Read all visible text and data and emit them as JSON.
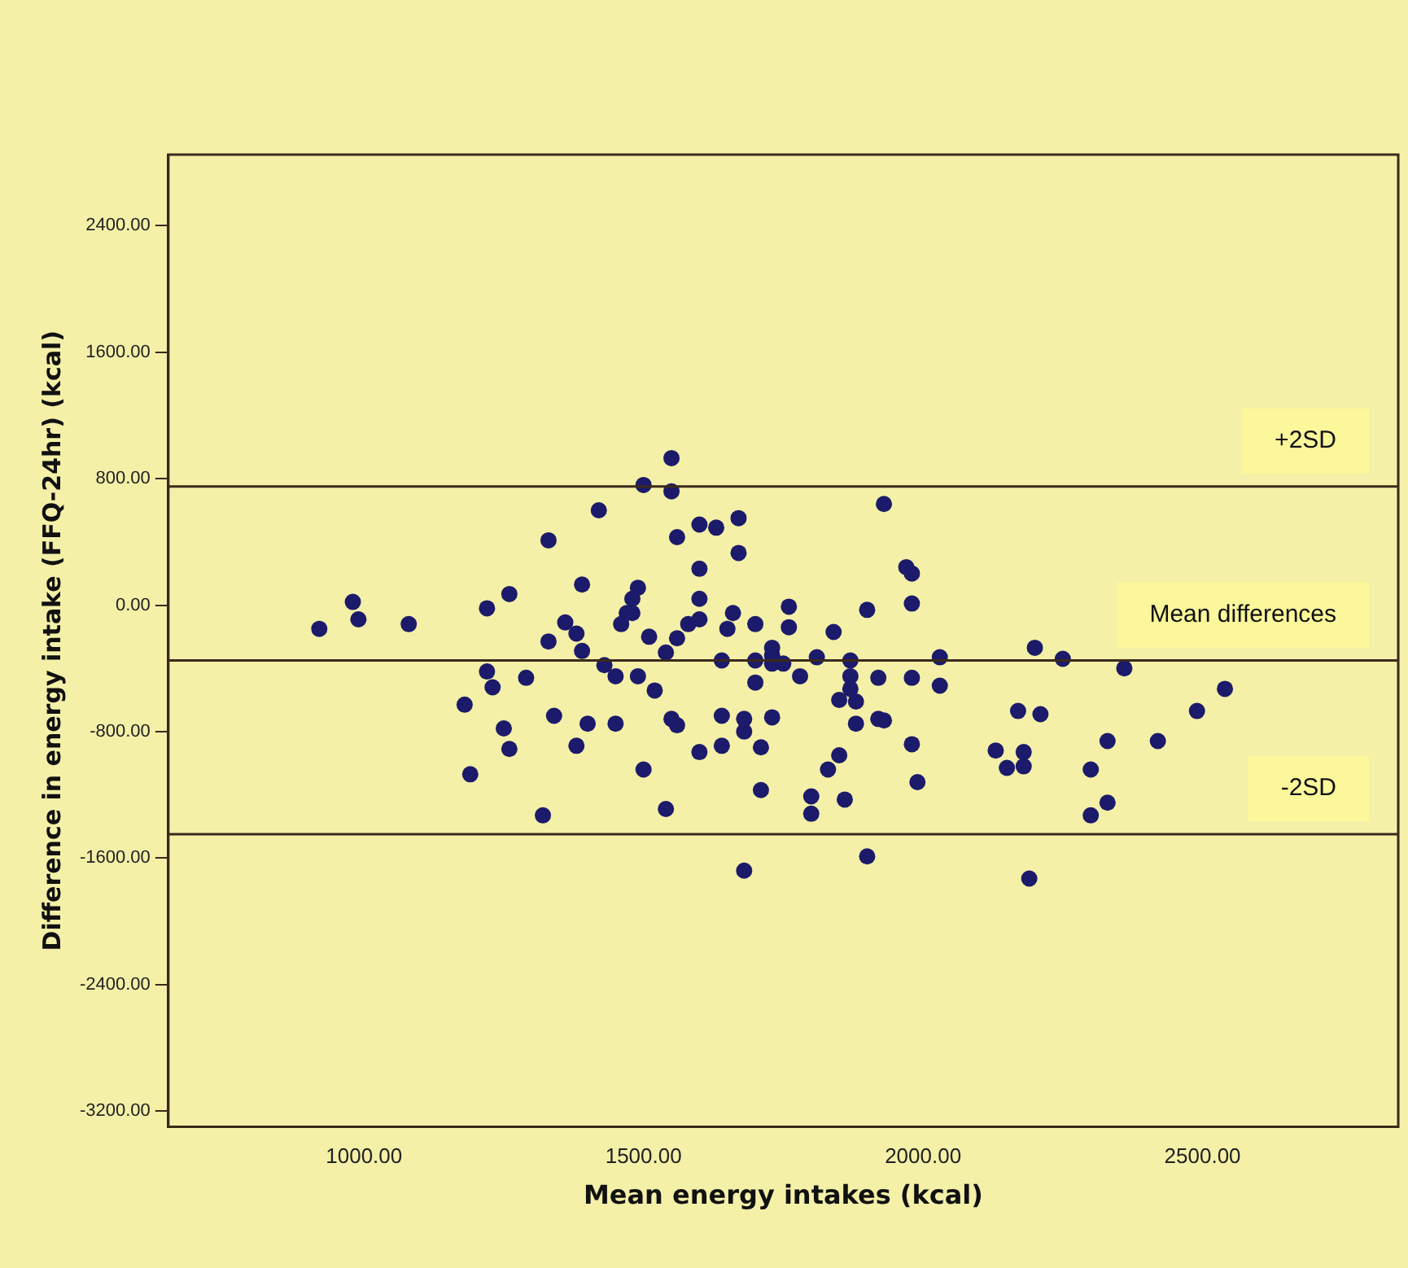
{
  "chart_data": {
    "type": "scatter",
    "xlabel": "Mean energy intakes (kcal)",
    "ylabel": "Difference in energy intake (FFQ-24hr) (kcal)",
    "xlim": [
      650,
      2850
    ],
    "xticks": [
      {
        "value": 1000,
        "label": "1000.00"
      },
      {
        "value": 1500,
        "label": "1500.00"
      },
      {
        "value": 2000,
        "label": "2000.00"
      },
      {
        "value": 2500,
        "label": "2500.00"
      }
    ],
    "ylim": [
      -3300,
      2850
    ],
    "yticks": [
      {
        "value": -3200,
        "label": "-3200.00"
      },
      {
        "value": -2400,
        "label": "-2400.00"
      },
      {
        "value": -1600,
        "label": "-1600.00"
      },
      {
        "value": -800,
        "label": "-800.00"
      },
      {
        "value": 0,
        "label": "0.00"
      },
      {
        "value": 800,
        "label": "800.00"
      },
      {
        "value": 1600,
        "label": "1600.00"
      },
      {
        "value": 2400,
        "label": "2400.00"
      }
    ],
    "marker": "circle",
    "series": [
      {
        "color": "#1c1a6a",
        "x": [
          1500,
          1420,
          1330,
          1390,
          1490,
          1480,
          1470,
          1480,
          1460,
          980,
          990,
          920,
          1080,
          1220,
          1260,
          1360,
          1380,
          1330,
          1390,
          1510,
          1430,
          1450,
          1490,
          1520,
          1220,
          1230,
          1290,
          1180,
          1340,
          1400,
          1450,
          1250,
          1260,
          1380,
          1190,
          1500,
          1320,
          1550,
          1550,
          1930,
          1670,
          1600,
          1630,
          1560,
          1670,
          1970,
          1980,
          1600,
          1600,
          1760,
          1900,
          1980,
          1660,
          1760,
          1700,
          1650,
          1600,
          1580,
          1840,
          1560,
          1540,
          1640,
          1700,
          1730,
          1730,
          1730,
          1750,
          1810,
          1780,
          1870,
          1870,
          1870,
          1920,
          1980,
          2030,
          2030,
          1700,
          1850,
          1880,
          1550,
          1560,
          1640,
          1680,
          1680,
          1730,
          1880,
          1920,
          1930,
          1600,
          1640,
          1710,
          1980,
          1850,
          1830,
          1990,
          1710,
          1800,
          1860,
          1800,
          1540,
          1900,
          1680,
          2200,
          2250,
          2360,
          2540,
          2490,
          2170,
          2210,
          2330,
          2420,
          2130,
          2180,
          2150,
          2180,
          2300,
          2330,
          2300,
          2190
        ],
        "values": [
          760,
          600,
          410,
          130,
          110,
          40,
          -50,
          -50,
          -120,
          20,
          -90,
          -150,
          -120,
          -20,
          70,
          -110,
          -180,
          -230,
          -290,
          -200,
          -380,
          -450,
          -450,
          -540,
          -420,
          -520,
          -460,
          -630,
          -700,
          -750,
          -750,
          -780,
          -910,
          -890,
          -1070,
          -1040,
          -1330,
          930,
          720,
          640,
          550,
          510,
          490,
          430,
          330,
          240,
          200,
          230,
          40,
          -10,
          -30,
          10,
          -50,
          -140,
          -120,
          -150,
          -90,
          -120,
          -170,
          -210,
          -300,
          -350,
          -350,
          -270,
          -320,
          -370,
          -370,
          -330,
          -450,
          -350,
          -450,
          -530,
          -460,
          -460,
          -330,
          -510,
          -490,
          -600,
          -610,
          -720,
          -760,
          -700,
          -720,
          -800,
          -710,
          -750,
          -720,
          -730,
          -930,
          -890,
          -900,
          -880,
          -950,
          -1040,
          -1120,
          -1170,
          -1210,
          -1230,
          -1320,
          -1290,
          -1590,
          -1680,
          -270,
          -340,
          -400,
          -530,
          -670,
          -670,
          -690,
          -860,
          -860,
          -920,
          -930,
          -1030,
          -1020,
          -1040,
          -1250,
          -1330,
          -1730
        ]
      }
    ],
    "ref_lines": [
      {
        "axis": "y",
        "value": 750,
        "label": "+2SD",
        "color": "#3a2a1a"
      },
      {
        "axis": "y",
        "value": -350,
        "label": "Mean differences",
        "color": "#3a2a1a"
      },
      {
        "axis": "y",
        "value": -1450,
        "label": "-2SD",
        "color": "#3a2a1a"
      }
    ]
  }
}
